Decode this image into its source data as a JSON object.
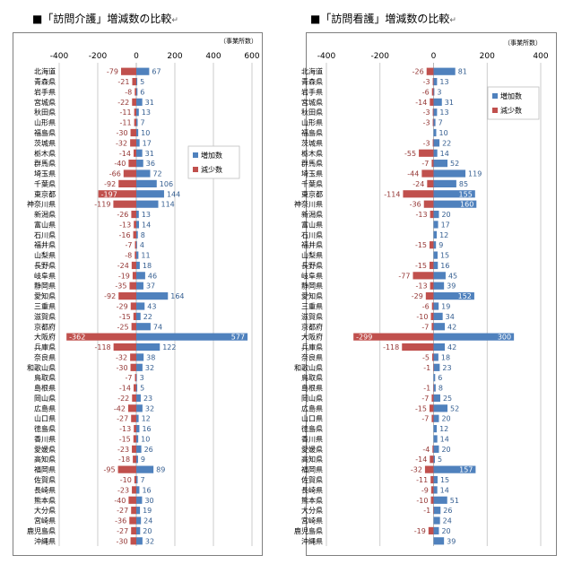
{
  "colors": {
    "increase": "#4f81bd",
    "decrease": "#c0504d",
    "increase_label": "#376092",
    "decrease_label": "#953735"
  },
  "chart_data": [
    {
      "type": "bar",
      "orientation": "horizontal",
      "title": "■「訪問介護」増減数の比較",
      "title_mark": "↵",
      "unit": "（事業所数）",
      "xlim": [
        -400,
        600
      ],
      "xticks": [
        -400,
        -200,
        0,
        200,
        400,
        600
      ],
      "gridlines": true,
      "legend_position": "right-middle",
      "categories": [
        "北海道",
        "青森県",
        "岩手県",
        "宮城県",
        "秋田県",
        "山形県",
        "福島県",
        "茨城県",
        "栃木県",
        "群馬県",
        "埼玉県",
        "千葉県",
        "東京都",
        "神奈川県",
        "新潟県",
        "富山県",
        "石川県",
        "福井県",
        "山梨県",
        "長野県",
        "岐阜県",
        "静岡県",
        "愛知県",
        "三重県",
        "滋賀県",
        "京都府",
        "大阪府",
        "兵庫県",
        "奈良県",
        "和歌山県",
        "鳥取県",
        "島根県",
        "岡山県",
        "広島県",
        "山口県",
        "徳島県",
        "香川県",
        "愛媛県",
        "高知県",
        "福岡県",
        "佐賀県",
        "長崎県",
        "熊本県",
        "大分県",
        "宮崎県",
        "鹿児島県",
        "沖縄県"
      ],
      "series": [
        {
          "name": "増加数",
          "color_key": "increase",
          "values": [
            67,
            5,
            6,
            31,
            13,
            7,
            10,
            17,
            31,
            36,
            72,
            106,
            144,
            114,
            13,
            14,
            8,
            4,
            11,
            18,
            46,
            37,
            164,
            43,
            22,
            74,
            577,
            122,
            38,
            32,
            3,
            5,
            23,
            32,
            12,
            16,
            10,
            26,
            9,
            89,
            7,
            16,
            30,
            19,
            24,
            20,
            32
          ]
        },
        {
          "name": "減少数",
          "color_key": "decrease",
          "values": [
            -79,
            -21,
            -8,
            -22,
            -11,
            -11,
            -30,
            -32,
            -14,
            -40,
            -66,
            -92,
            -197,
            -119,
            -26,
            -13,
            -16,
            -7,
            -8,
            -24,
            -19,
            -35,
            -92,
            -29,
            -15,
            -25,
            -362,
            -118,
            -32,
            -30,
            -7,
            -14,
            -22,
            -42,
            -27,
            -13,
            -15,
            -23,
            -18,
            -95,
            -10,
            -23,
            -40,
            -27,
            -36,
            -27,
            -30
          ]
        }
      ]
    },
    {
      "type": "bar",
      "orientation": "horizontal",
      "title": "■「訪問看護」増減数の比較",
      "title_mark": "↵",
      "unit": "（事業所数）",
      "xlim": [
        -400,
        400
      ],
      "xticks": [
        -400,
        -200,
        0,
        200,
        400
      ],
      "gridlines": true,
      "legend_position": "right-top",
      "categories": [
        "北海道",
        "青森県",
        "岩手県",
        "宮城県",
        "秋田県",
        "山形県",
        "福島県",
        "茨城県",
        "栃木県",
        "群馬県",
        "埼玉県",
        "千葉県",
        "東京都",
        "神奈川県",
        "新潟県",
        "富山県",
        "石川県",
        "福井県",
        "山梨県",
        "長野県",
        "岐阜県",
        "静岡県",
        "愛知県",
        "三重県",
        "滋賀県",
        "京都府",
        "大阪府",
        "兵庫県",
        "奈良県",
        "和歌山県",
        "鳥取県",
        "島根県",
        "岡山県",
        "広島県",
        "山口県",
        "徳島県",
        "香川県",
        "愛媛県",
        "高知県",
        "福岡県",
        "佐賀県",
        "長崎県",
        "熊本県",
        "大分県",
        "宮崎県",
        "鹿児島県",
        "沖縄県"
      ],
      "series": [
        {
          "name": "増加数",
          "color_key": "increase",
          "values": [
            81,
            13,
            3,
            31,
            13,
            7,
            10,
            22,
            14,
            52,
            119,
            85,
            155,
            160,
            20,
            17,
            12,
            9,
            15,
            16,
            45,
            39,
            152,
            19,
            34,
            42,
            300,
            42,
            18,
            23,
            6,
            8,
            25,
            52,
            20,
            12,
            14,
            20,
            5,
            157,
            15,
            14,
            51,
            26,
            24,
            20,
            39
          ]
        },
        {
          "name": "減少数",
          "color_key": "decrease",
          "values": [
            -26,
            -3,
            -6,
            -14,
            -3,
            -3,
            null,
            -3,
            -55,
            -7,
            -44,
            -24,
            -114,
            -36,
            -13,
            null,
            null,
            -15,
            null,
            -15,
            -77,
            -13,
            -29,
            -6,
            -10,
            -7,
            -299,
            -118,
            -5,
            -1,
            null,
            -1,
            -7,
            -15,
            -7,
            null,
            null,
            -4,
            -14,
            -32,
            -11,
            -9,
            -10,
            -1,
            null,
            -19,
            null
          ]
        }
      ]
    }
  ]
}
